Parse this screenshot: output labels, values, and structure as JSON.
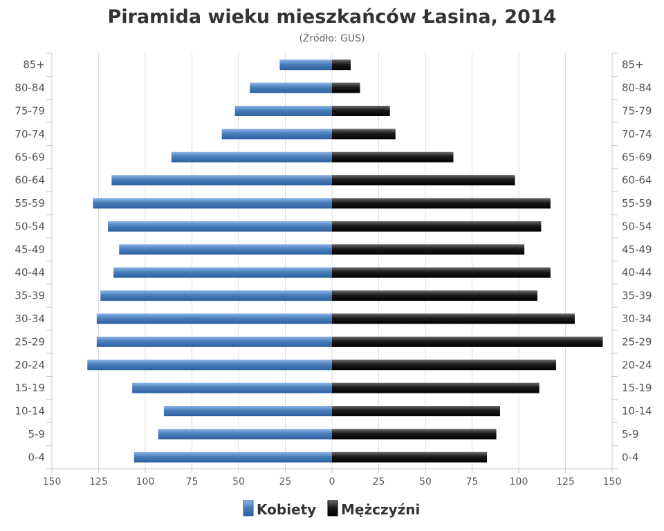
{
  "chart_data": {
    "type": "bar",
    "orientation": "horizontal",
    "title": "Piramida wieku mieszkańców Łasina, 2014",
    "subtitle": "(Źródło: GUS)",
    "categories": [
      "85+",
      "80-84",
      "75-79",
      "70-74",
      "65-69",
      "60-64",
      "55-59",
      "50-54",
      "45-49",
      "40-44",
      "35-39",
      "30-34",
      "25-29",
      "20-24",
      "15-19",
      "10-14",
      "5-9",
      "0-4"
    ],
    "series": [
      {
        "name": "Kobiety",
        "color": "#4a7ebb",
        "side": "left",
        "values": [
          28,
          44,
          52,
          59,
          86,
          118,
          128,
          120,
          114,
          117,
          124,
          126,
          126,
          131,
          107,
          90,
          93,
          106
        ]
      },
      {
        "name": "Mężczyźni",
        "color": "#111111",
        "side": "right",
        "values": [
          10,
          15,
          31,
          34,
          65,
          98,
          117,
          112,
          103,
          117,
          110,
          130,
          145,
          120,
          111,
          90,
          88,
          83
        ]
      }
    ],
    "xlim": [
      -150,
      150
    ],
    "x_ticks": [
      -150,
      -125,
      -100,
      -75,
      -50,
      -25,
      0,
      25,
      50,
      75,
      100,
      125,
      150
    ],
    "x_tick_labels": [
      "150",
      "125",
      "100",
      "75",
      "50",
      "25",
      "0",
      "25",
      "50",
      "75",
      "100",
      "125",
      "150"
    ],
    "grid": true,
    "legend_position": "bottom-center"
  }
}
